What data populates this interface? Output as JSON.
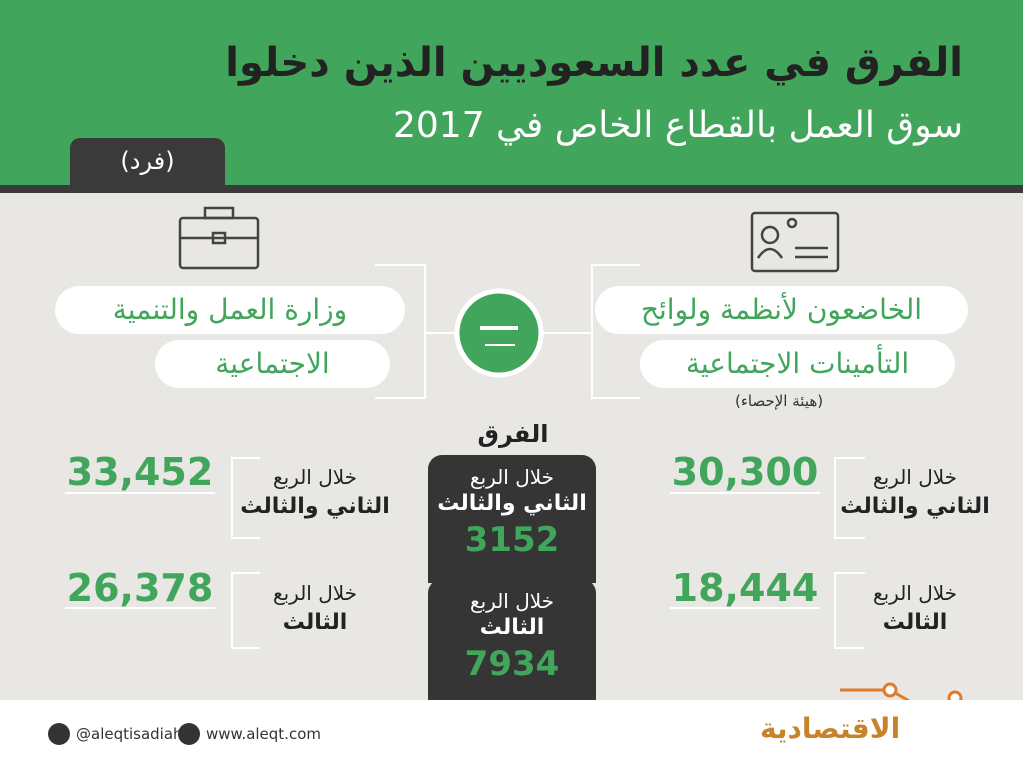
{
  "header": {
    "title_lines": [
      "الفرق في عدد السعوديين الذين دخلوا",
      "سوق العمل بالقطاع الخاص في 2017"
    ],
    "unit": "(فرد)"
  },
  "right_panel": {
    "heading_lines": [
      "الخاضعون لأنظمة ولوائح",
      "التأمينات الاجتماعية"
    ],
    "source": "(هيئة الإحصاء)",
    "rows": [
      {
        "label_lines": [
          "خلال الربع",
          "الثاني والثالث"
        ],
        "value": "30,300"
      },
      {
        "label_lines": [
          "خلال الربع",
          "الثالث"
        ],
        "value": "18,444"
      }
    ]
  },
  "left_panel": {
    "heading_lines": [
      "وزارة العمل والتنمية",
      "الاجتماعية"
    ],
    "rows": [
      {
        "label_lines": [
          "خلال الربع",
          "الثاني والثالث"
        ],
        "value": "33,452"
      },
      {
        "label_lines": [
          "خلال الربع",
          "الثالث"
        ],
        "value": "26,378"
      }
    ]
  },
  "difference": {
    "title": "الفرق",
    "rows": [
      {
        "label_lines": [
          "خلال الربع",
          "الثاني والثالث"
        ],
        "value": "3152"
      },
      {
        "label_lines": [
          "خلال الربع",
          "الثالث"
        ],
        "value": "7934"
      }
    ]
  },
  "footer": {
    "twitter": "@aleqtisadiah",
    "website": "www.aleqt.com",
    "logo": "الاقتصادية"
  }
}
